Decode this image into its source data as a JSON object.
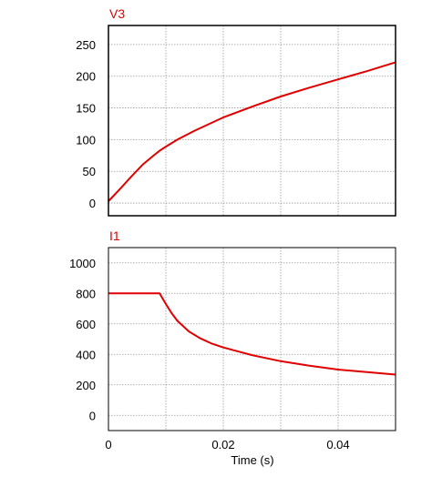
{
  "chart_data": [
    {
      "type": "line",
      "title": "V3",
      "title_color": "#e00000",
      "line_color": "#e00000",
      "grid": true,
      "xlim": [
        0,
        0.05
      ],
      "ylim": [
        -20,
        280
      ],
      "y_ticks": [
        0,
        50,
        100,
        150,
        200,
        250
      ],
      "y_tick_labels": [
        "0",
        "50",
        "100",
        "150",
        "200",
        "250"
      ],
      "series": [
        {
          "x": [
            0,
            0.002,
            0.004,
            0.006,
            0.008,
            0.009,
            0.01,
            0.012,
            0.015,
            0.02,
            0.025,
            0.03,
            0.035,
            0.04,
            0.045,
            0.05
          ],
          "y": [
            3,
            22,
            42,
            61,
            76,
            83,
            89,
            100,
            114,
            135,
            152,
            168,
            182,
            195,
            208,
            222
          ]
        }
      ]
    },
    {
      "type": "line",
      "title": "I1",
      "title_color": "#e00000",
      "line_color": "#e00000",
      "grid": true,
      "xlim": [
        0,
        0.05
      ],
      "ylim": [
        -100,
        1100
      ],
      "y_ticks": [
        0,
        200,
        400,
        600,
        800,
        1000
      ],
      "y_tick_labels": [
        "0",
        "200",
        "400",
        "600",
        "800",
        "1000"
      ],
      "xlabel": "Time (s)",
      "x_ticks": [
        0,
        0.02,
        0.04
      ],
      "x_tick_labels": [
        "0",
        "0.02",
        "0.04"
      ],
      "series": [
        {
          "x": [
            0,
            0.0089,
            0.01,
            0.011,
            0.012,
            0.014,
            0.016,
            0.018,
            0.02,
            0.025,
            0.03,
            0.035,
            0.04,
            0.045,
            0.05
          ],
          "y": [
            800,
            800,
            730,
            670,
            620,
            550,
            505,
            470,
            445,
            395,
            355,
            325,
            300,
            283,
            267
          ]
        }
      ]
    }
  ]
}
